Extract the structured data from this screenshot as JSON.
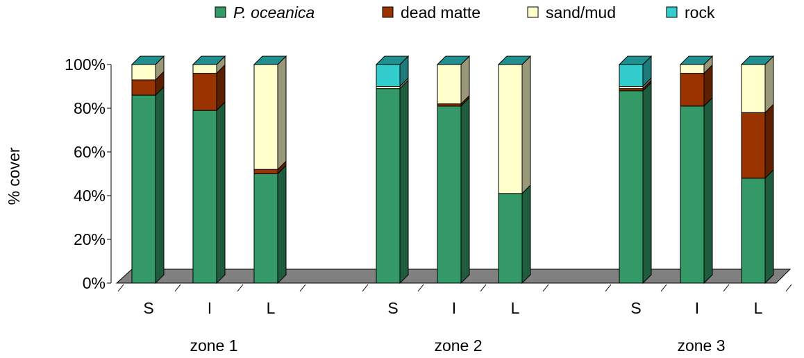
{
  "chart_data": {
    "type": "bar",
    "stacked": true,
    "three_d": true,
    "ylabel": "% cover",
    "ylim": [
      0,
      100
    ],
    "yticks": [
      "0%",
      "20%",
      "40%",
      "60%",
      "80%",
      "100%"
    ],
    "legend_position": "top",
    "groups": [
      {
        "name": "zone 1",
        "categories": [
          "S",
          "I",
          "L"
        ]
      },
      {
        "name": "zone 2",
        "categories": [
          "S",
          "I",
          "L"
        ]
      },
      {
        "name": "zone 3",
        "categories": [
          "S",
          "I",
          "L"
        ]
      }
    ],
    "series": [
      {
        "name": "P. oceanica",
        "italic": true,
        "color": "#339966",
        "values": [
          86,
          79,
          50,
          89,
          81,
          41,
          88,
          81,
          48
        ]
      },
      {
        "name": "dead matte",
        "color": "#993300",
        "values": [
          7,
          17,
          2,
          0,
          1,
          0,
          1,
          15,
          30
        ]
      },
      {
        "name": "sand/mud",
        "color": "#ffffcc",
        "values": [
          7,
          4,
          48,
          1,
          18,
          59,
          1,
          4,
          22
        ]
      },
      {
        "name": "rock",
        "color": "#33cccc",
        "values": [
          0,
          0,
          0,
          10,
          0,
          0,
          10,
          0,
          0
        ]
      }
    ],
    "floor_color": "#808080"
  }
}
